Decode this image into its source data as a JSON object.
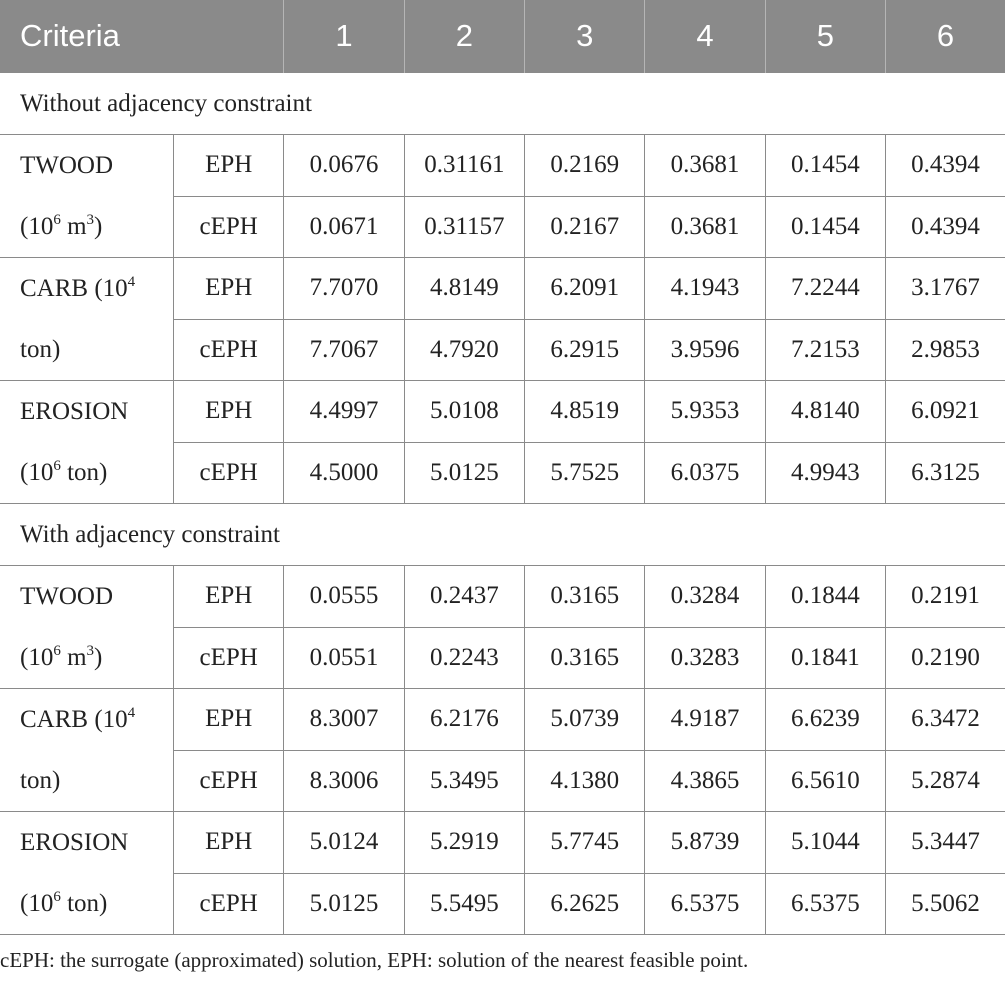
{
  "header": {
    "criteria": "Criteria",
    "columns": [
      "1",
      "2",
      "3",
      "4",
      "5",
      "6"
    ]
  },
  "sections": [
    {
      "title": "Without adjacency constraint",
      "groups": [
        {
          "name": "TWOOD",
          "unit_pre": "(10",
          "unit_exp": "6",
          "unit_mid": " m",
          "unit_exp2": "3",
          "unit_post": ")",
          "rows": [
            {
              "label": "EPH",
              "values": [
                "0.0676",
                "0.31161",
                "0.2169",
                "0.3681",
                "0.1454",
                "0.4394"
              ]
            },
            {
              "label": "cEPH",
              "values": [
                "0.0671",
                "0.31157",
                "0.2167",
                "0.3681",
                "0.1454",
                "0.4394"
              ]
            }
          ]
        },
        {
          "name": "CARB (10",
          "name_exp": "4",
          "unit_pre": "ton)",
          "rows": [
            {
              "label": "EPH",
              "values": [
                "7.7070",
                "4.8149",
                "6.2091",
                "4.1943",
                "7.2244",
                "3.1767"
              ]
            },
            {
              "label": "cEPH",
              "values": [
                "7.7067",
                "4.7920",
                "6.2915",
                "3.9596",
                "7.2153",
                "2.9853"
              ]
            }
          ]
        },
        {
          "name": "EROSION",
          "unit_pre": "(10",
          "unit_exp": "6",
          "unit_mid": " ton)",
          "rows": [
            {
              "label": "EPH",
              "values": [
                "4.4997",
                "5.0108",
                "4.8519",
                "5.9353",
                "4.8140",
                "6.0921"
              ]
            },
            {
              "label": "cEPH",
              "values": [
                "4.5000",
                "5.0125",
                "5.7525",
                "6.0375",
                "4.9943",
                "6.3125"
              ]
            }
          ]
        }
      ]
    },
    {
      "title": "With adjacency constraint",
      "groups": [
        {
          "name": "TWOOD",
          "unit_pre": "(10",
          "unit_exp": "6",
          "unit_mid": " m",
          "unit_exp2": "3",
          "unit_post": ")",
          "rows": [
            {
              "label": "EPH",
              "values": [
                "0.0555",
                "0.2437",
                "0.3165",
                "0.3284",
                "0.1844",
                "0.2191"
              ]
            },
            {
              "label": "cEPH",
              "values": [
                "0.0551",
                "0.2243",
                "0.3165",
                "0.3283",
                "0.1841",
                "0.2190"
              ]
            }
          ]
        },
        {
          "name": "CARB (10",
          "name_exp": "4",
          "unit_pre": "ton)",
          "rows": [
            {
              "label": "EPH",
              "values": [
                "8.3007",
                "6.2176",
                "5.0739",
                "4.9187",
                "6.6239",
                "6.3472"
              ]
            },
            {
              "label": "cEPH",
              "values": [
                "8.3006",
                "5.3495",
                "4.1380",
                "4.3865",
                "6.5610",
                "5.2874"
              ]
            }
          ]
        },
        {
          "name": "EROSION",
          "unit_pre": "(10",
          "unit_exp": "6",
          "unit_mid": " ton)",
          "rows": [
            {
              "label": "EPH",
              "values": [
                "5.0124",
                "5.2919",
                "5.7745",
                "5.8739",
                "5.1044",
                "5.3447"
              ]
            },
            {
              "label": "cEPH",
              "values": [
                "5.0125",
                "5.5495",
                "6.2625",
                "6.5375",
                "6.5375",
                "5.5062"
              ]
            }
          ]
        }
      ]
    }
  ],
  "footnote": "cEPH: the surrogate (approximated) solution, EPH: solution of the nearest feasible point."
}
